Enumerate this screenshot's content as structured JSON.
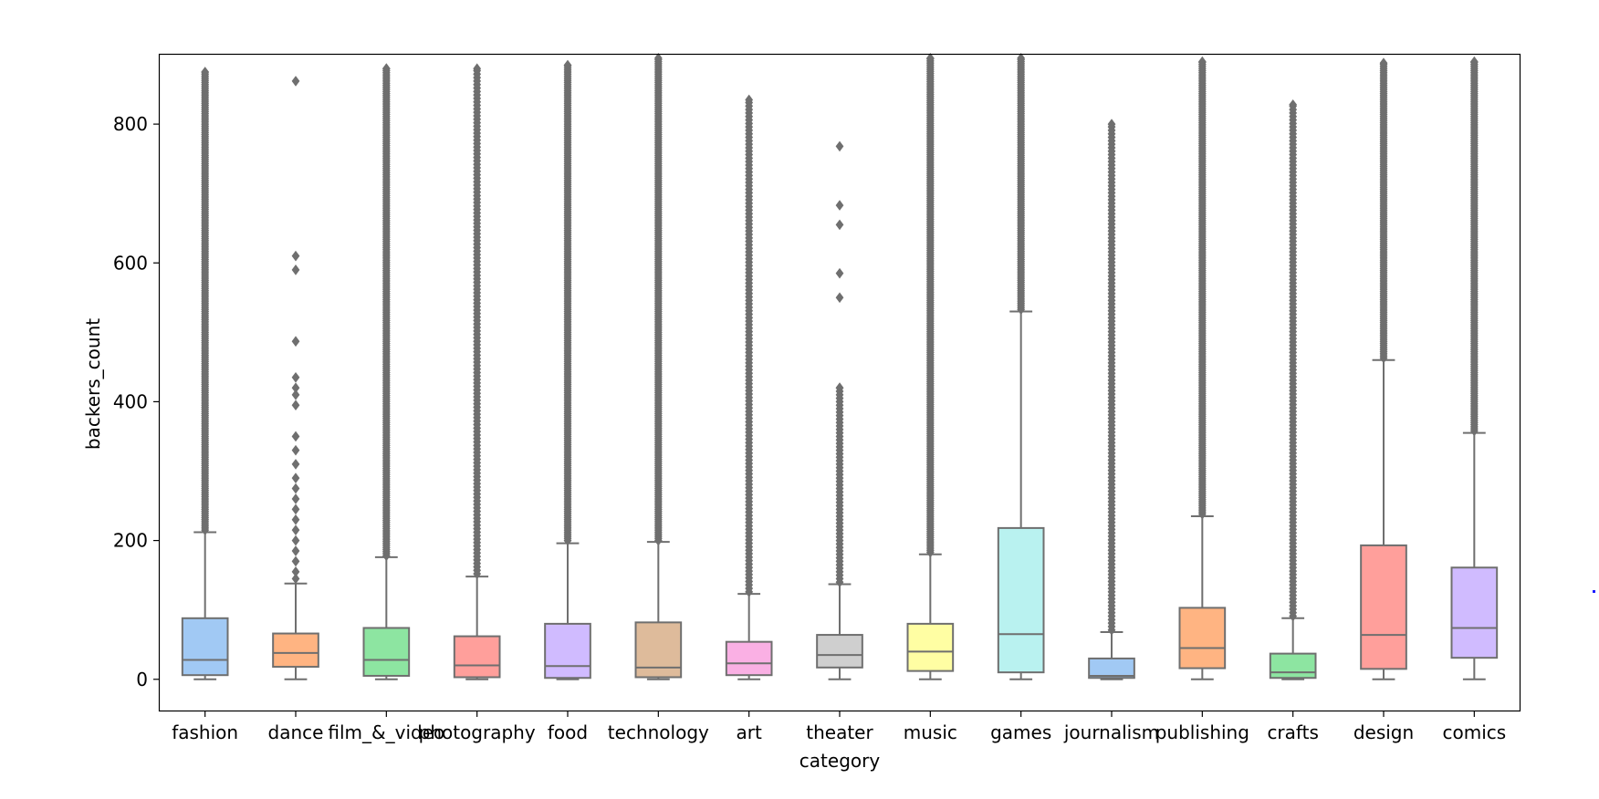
{
  "chart_data": {
    "type": "box",
    "xlabel": "category",
    "ylabel": "backers_count",
    "ylim": [
      -45,
      900
    ],
    "yticks": [
      0,
      200,
      400,
      600,
      800
    ],
    "outlier_max": 890,
    "series": [
      {
        "category": "fashion",
        "color": "#a1c9f4",
        "min": 0,
        "q1": 6,
        "median": 28,
        "q3": 88,
        "whisker_high": 212,
        "outlier_start": 215,
        "outlier_end": 875,
        "density": "high"
      },
      {
        "category": "dance",
        "color": "#ffb482",
        "min": 0,
        "q1": 18,
        "median": 38,
        "q3": 66,
        "whisker_high": 138,
        "outlier_list": [
          145,
          155,
          170,
          185,
          200,
          215,
          230,
          245,
          260,
          275,
          290,
          310,
          330,
          350,
          395,
          410,
          420,
          435,
          487,
          590,
          610,
          862
        ]
      },
      {
        "category": "film_&_video",
        "color": "#8de5a1",
        "min": 0,
        "q1": 5,
        "median": 28,
        "q3": 74,
        "whisker_high": 176,
        "outlier_start": 178,
        "outlier_end": 880,
        "density": "high"
      },
      {
        "category": "photography",
        "color": "#ff9f9b",
        "min": 0,
        "q1": 3,
        "median": 20,
        "q3": 62,
        "whisker_high": 148,
        "outlier_start": 152,
        "outlier_end": 880,
        "density": "medium"
      },
      {
        "category": "food",
        "color": "#d0bbff",
        "min": 0,
        "q1": 2,
        "median": 19,
        "q3": 80,
        "whisker_high": 196,
        "outlier_start": 200,
        "outlier_end": 885,
        "density": "high"
      },
      {
        "category": "technology",
        "color": "#debb9b",
        "min": 0,
        "q1": 3,
        "median": 17,
        "q3": 82,
        "whisker_high": 198,
        "outlier_start": 200,
        "outlier_end": 895,
        "density": "high"
      },
      {
        "category": "art",
        "color": "#fab0e4",
        "min": 0,
        "q1": 6,
        "median": 23,
        "q3": 54,
        "whisker_high": 123,
        "outlier_start": 126,
        "outlier_end": 835,
        "density": "medium"
      },
      {
        "category": "theater",
        "color": "#cfcfcf",
        "min": 0,
        "q1": 17,
        "median": 35,
        "q3": 64,
        "whisker_high": 137,
        "outlier_start": 140,
        "outlier_end": 420,
        "extra_outliers": [
          550,
          585,
          655,
          683,
          768
        ],
        "density": "medium"
      },
      {
        "category": "music",
        "color": "#fffea3",
        "min": 0,
        "q1": 12,
        "median": 40,
        "q3": 80,
        "whisker_high": 180,
        "outlier_start": 183,
        "outlier_end": 895,
        "density": "high"
      },
      {
        "category": "games",
        "color": "#b9f2f0",
        "min": 0,
        "q1": 10,
        "median": 65,
        "q3": 218,
        "whisker_high": 530,
        "outlier_start": 533,
        "outlier_end": 895,
        "density": "high"
      },
      {
        "category": "journalism",
        "color": "#a1c9f4",
        "min": 0,
        "q1": 2,
        "median": 5,
        "q3": 30,
        "whisker_high": 68,
        "outlier_start": 71,
        "outlier_end": 800,
        "density": "medium"
      },
      {
        "category": "publishing",
        "color": "#ffb482",
        "min": 0,
        "q1": 16,
        "median": 45,
        "q3": 103,
        "whisker_high": 235,
        "outlier_start": 238,
        "outlier_end": 890,
        "density": "high"
      },
      {
        "category": "crafts",
        "color": "#8de5a1",
        "min": 0,
        "q1": 2,
        "median": 10,
        "q3": 37,
        "whisker_high": 88,
        "outlier_start": 91,
        "outlier_end": 828,
        "density": "medium"
      },
      {
        "category": "design",
        "color": "#ff9f9b",
        "min": 0,
        "q1": 15,
        "median": 64,
        "q3": 193,
        "whisker_high": 460,
        "outlier_start": 463,
        "outlier_end": 888,
        "density": "high"
      },
      {
        "category": "comics",
        "color": "#d0bbff",
        "min": 0,
        "q1": 31,
        "median": 74,
        "q3": 161,
        "whisker_high": 355,
        "outlier_start": 358,
        "outlier_end": 890,
        "density": "high"
      }
    ]
  }
}
